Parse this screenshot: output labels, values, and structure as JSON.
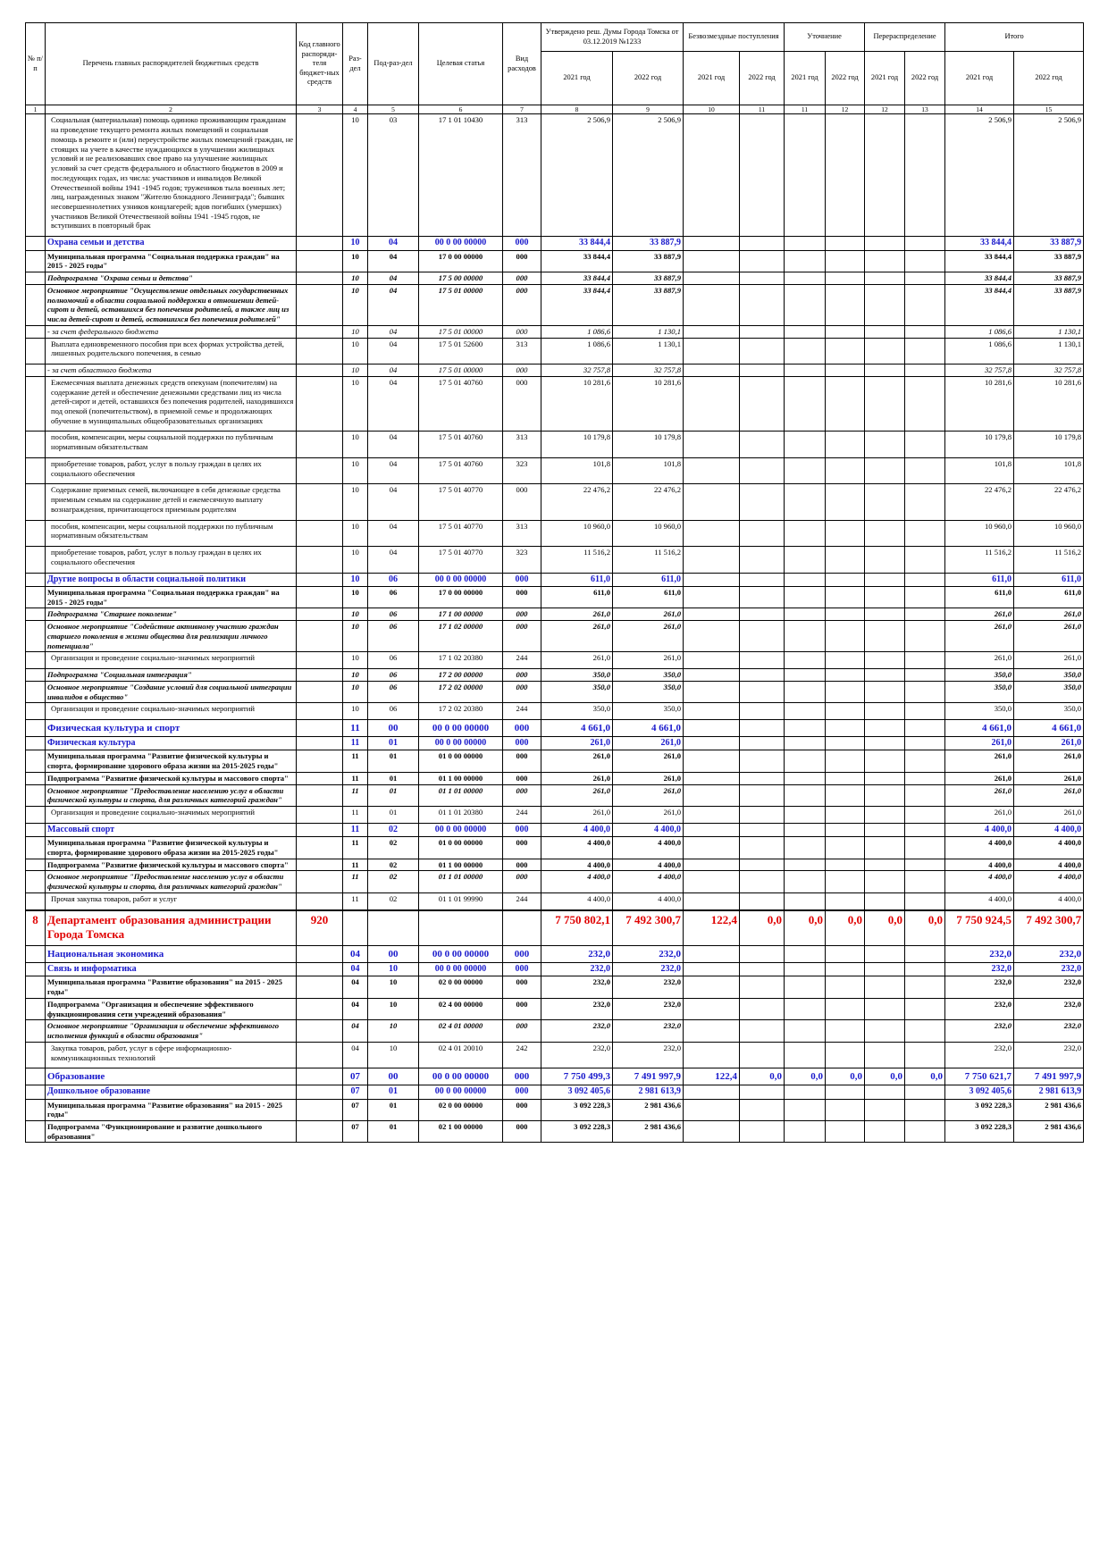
{
  "header": {
    "cols": [
      "№ п/п",
      "Перечень главных распорядителей бюджетных средств",
      "Код главного распоряди-теля бюджет-ных средств",
      "Раз-дел",
      "Под-раз-дел",
      "Целевая статья",
      "Вид расходов",
      "Утверждено реш. Думы Города Томска от 03.12.2019 №1233",
      "Безвозмездные поступления",
      "Уточнение",
      "Перераспределение",
      "Итого"
    ],
    "years": [
      "2021 год",
      "2022 год",
      "2021 год",
      "2022 год",
      "2021 год",
      "2022 год",
      "2021 год",
      "2022 год",
      "2021 год",
      "2022 год"
    ],
    "numbers": [
      "1",
      "2",
      "3",
      "4",
      "5",
      "6",
      "7",
      "8",
      "9",
      "10",
      "11",
      "11",
      "12",
      "12",
      "13",
      "14",
      "15"
    ]
  },
  "rows": [
    {
      "style": "plain",
      "cells": [
        null,
        "Социальная (материальная) помощь одиноко проживающим гражданам на проведение текущего ремонта жилых помещений и социальная помощь в ремонте и (или) переустройстве жилых помещений граждан, не стоящих на учете в качестве нуждающихся в улучшении жилищных условий и не реализовавших свое право на улучшение жилищных условий за счет средств федерального и областного бюджетов в 2009 и последующих годах, из числа: участников и инвалидов Великой Отечественной войны 1941 -1945 годов; тружеников тыла военных лет; лиц, награжденных знаком \"Жителю блокадного Ленинграда\"; бывших несовершеннолетних узников концлагерей; вдов погибших (умерших) участников Великой Отечественной войны 1941 -1945 годов, не вступивших в повторный брак",
        null,
        "10",
        "03",
        "17 1 01 10430",
        "313",
        "2 506,9",
        "2 506,9",
        null,
        null,
        null,
        null,
        null,
        null,
        "2 506,9",
        "2 506,9"
      ]
    },
    {
      "style": "section",
      "cells": [
        null,
        "Охрана семьи и детства",
        null,
        "10",
        "04",
        "00 0 00 00000",
        "000",
        "33 844,4",
        "33 887,9",
        null,
        null,
        null,
        null,
        null,
        null,
        "33 844,4",
        "33 887,9"
      ]
    },
    {
      "style": "bold",
      "cells": [
        null,
        "Муниципальная программа \"Социальная поддержка граждан\" на 2015 - 2025 годы\"",
        null,
        "10",
        "04",
        "17 0 00 00000",
        "000",
        "33 844,4",
        "33 887,9",
        null,
        null,
        null,
        null,
        null,
        null,
        "33 844,4",
        "33 887,9"
      ]
    },
    {
      "style": "bold-italic",
      "cells": [
        null,
        "Подпрограмма \"Охрана семьи и детства\"",
        null,
        "10",
        "04",
        "17 5 00 00000",
        "000",
        "33 844,4",
        "33 887,9",
        null,
        null,
        null,
        null,
        null,
        null,
        "33 844,4",
        "33 887,9"
      ]
    },
    {
      "style": "bold-italic",
      "cells": [
        null,
        "Основное мероприятие \"Осуществление отдельных государственных полномочий в области социальной поддержки в отношении детей-сирот и детей, оставшихся без попечения родителей, а также лиц из числа детей-сирот и детей, оставшихся без попечения родителей\"",
        null,
        "10",
        "04",
        "17 5 01 00000",
        "000",
        "33 844,4",
        "33 887,9",
        null,
        null,
        null,
        null,
        null,
        null,
        "33 844,4",
        "33 887,9"
      ]
    },
    {
      "style": "italic",
      "cells": [
        null,
        "- за счет федерального бюджета",
        null,
        "10",
        "04",
        "17 5 01 00000",
        "000",
        "1 086,6",
        "1 130,1",
        null,
        null,
        null,
        null,
        null,
        null,
        "1 086,6",
        "1 130,1"
      ]
    },
    {
      "style": "plain",
      "cells": [
        null,
        "Выплата единовременного пособия при всех формах устройства детей, лишенных родительского попечения, в семью",
        null,
        "10",
        "04",
        "17 5 01 52600",
        "313",
        "1 086,6",
        "1 130,1",
        null,
        null,
        null,
        null,
        null,
        null,
        "1 086,6",
        "1 130,1"
      ]
    },
    {
      "style": "italic",
      "cells": [
        null,
        "- за счет областного бюджета",
        null,
        "10",
        "04",
        "17 5 01 00000",
        "000",
        "32 757,8",
        "32 757,8",
        null,
        null,
        null,
        null,
        null,
        null,
        "32 757,8",
        "32 757,8"
      ]
    },
    {
      "style": "plain",
      "cells": [
        null,
        "Ежемесячная выплата денежных средств опекунам (попечителям) на содержание детей и обеспечение денежными средствами лиц из числа детей-сирот и детей, оставшихся без попечения родителей, находившихся под опекой (попечительством), в приемной семье и продолжающих обучение в муниципальных общеобразовательных организациях",
        null,
        "10",
        "04",
        "17 5 01 40760",
        "000",
        "10 281,6",
        "10 281,6",
        null,
        null,
        null,
        null,
        null,
        null,
        "10 281,6",
        "10 281,6"
      ]
    },
    {
      "style": "plain",
      "cells": [
        null,
        "пособия, компенсации, меры социальной поддержки по публичным нормативным обязательствам",
        null,
        "10",
        "04",
        "17 5 01 40760",
        "313",
        "10 179,8",
        "10 179,8",
        null,
        null,
        null,
        null,
        null,
        null,
        "10 179,8",
        "10 179,8"
      ]
    },
    {
      "style": "plain",
      "cells": [
        null,
        "приобретение товаров, работ, услуг в пользу граждан в целях их социального обеспечения",
        null,
        "10",
        "04",
        "17 5 01 40760",
        "323",
        "101,8",
        "101,8",
        null,
        null,
        null,
        null,
        null,
        null,
        "101,8",
        "101,8"
      ]
    },
    {
      "style": "plain",
      "cells": [
        null,
        "Содержание приемных семей, включающее в себя денежные средства приемным семьям на содержание детей и ежемесячную выплату вознаграждения, причитающегося приемным родителям",
        null,
        "10",
        "04",
        "17 5 01 40770",
        "000",
        "22 476,2",
        "22 476,2",
        null,
        null,
        null,
        null,
        null,
        null,
        "22 476,2",
        "22 476,2"
      ]
    },
    {
      "style": "plain",
      "cells": [
        null,
        "пособия, компенсации, меры социальной поддержки по публичным нормативным обязательствам",
        null,
        "10",
        "04",
        "17 5 01 40770",
        "313",
        "10 960,0",
        "10 960,0",
        null,
        null,
        null,
        null,
        null,
        null,
        "10 960,0",
        "10 960,0"
      ]
    },
    {
      "style": "plain",
      "cells": [
        null,
        "приобретение товаров, работ, услуг в пользу граждан в целях их социального обеспечения",
        null,
        "10",
        "04",
        "17 5 01 40770",
        "323",
        "11 516,2",
        "11 516,2",
        null,
        null,
        null,
        null,
        null,
        null,
        "11 516,2",
        "11 516,2"
      ]
    },
    {
      "style": "section",
      "cells": [
        null,
        "Другие вопросы в области социальной политики",
        null,
        "10",
        "06",
        "00 0 00 00000",
        "000",
        "611,0",
        "611,0",
        null,
        null,
        null,
        null,
        null,
        null,
        "611,0",
        "611,0"
      ]
    },
    {
      "style": "bold",
      "cells": [
        null,
        "Муниципальная программа \"Социальная поддержка граждан\" на 2015 - 2025 годы\"",
        null,
        "10",
        "06",
        "17 0 00 00000",
        "000",
        "611,0",
        "611,0",
        null,
        null,
        null,
        null,
        null,
        null,
        "611,0",
        "611,0"
      ]
    },
    {
      "style": "bold-italic",
      "cells": [
        null,
        "Подпрограмма \"Старшее поколение\"",
        null,
        "10",
        "06",
        "17 1 00 00000",
        "000",
        "261,0",
        "261,0",
        null,
        null,
        null,
        null,
        null,
        null,
        "261,0",
        "261,0"
      ]
    },
    {
      "style": "bold-italic",
      "cells": [
        null,
        "Основное мероприятие \"Содействие активному участию граждан старшего поколения в жизни общества для реализации личного потенциала\"",
        null,
        "10",
        "06",
        "17 1 02 00000",
        "000",
        "261,0",
        "261,0",
        null,
        null,
        null,
        null,
        null,
        null,
        "261,0",
        "261,0"
      ]
    },
    {
      "style": "plain",
      "cells": [
        null,
        "Организация и проведение социально-значимых мероприятий",
        null,
        "10",
        "06",
        "17 1 02 20380",
        "244",
        "261,0",
        "261,0",
        null,
        null,
        null,
        null,
        null,
        null,
        "261,0",
        "261,0"
      ]
    },
    {
      "style": "bold-italic",
      "cells": [
        null,
        "Подпрограмма \"Социальная интеграция\"",
        null,
        "10",
        "06",
        "17 2 00 00000",
        "000",
        "350,0",
        "350,0",
        null,
        null,
        null,
        null,
        null,
        null,
        "350,0",
        "350,0"
      ]
    },
    {
      "style": "bold-italic",
      "cells": [
        null,
        "Основное мероприятие \"Создание условий для социальной интеграции инвалидов в общество\"",
        null,
        "10",
        "06",
        "17 2 02 00000",
        "000",
        "350,0",
        "350,0",
        null,
        null,
        null,
        null,
        null,
        null,
        "350,0",
        "350,0"
      ]
    },
    {
      "style": "plain",
      "cells": [
        null,
        "Организация и проведение социально-значимых мероприятий",
        null,
        "10",
        "06",
        "17 2 02 20380",
        "244",
        "350,0",
        "350,0",
        null,
        null,
        null,
        null,
        null,
        null,
        "350,0",
        "350,0"
      ]
    },
    {
      "style": "section-big",
      "cells": [
        null,
        "Физическая культура и спорт",
        null,
        "11",
        "00",
        "00 0 00 00000",
        "000",
        "4 661,0",
        "4 661,0",
        null,
        null,
        null,
        null,
        null,
        null,
        "4 661,0",
        "4 661,0"
      ]
    },
    {
      "style": "section",
      "cells": [
        null,
        "Физическая культура",
        null,
        "11",
        "01",
        "00 0 00 00000",
        "000",
        "261,0",
        "261,0",
        null,
        null,
        null,
        null,
        null,
        null,
        "261,0",
        "261,0"
      ]
    },
    {
      "style": "bold",
      "cells": [
        null,
        "Муниципальная программа \"Развитие физической культуры и спорта, формирование здорового образа жизни на 2015-2025 годы\"",
        null,
        "11",
        "01",
        "01 0 00 00000",
        "000",
        "261,0",
        "261,0",
        null,
        null,
        null,
        null,
        null,
        null,
        "261,0",
        "261,0"
      ]
    },
    {
      "style": "bold",
      "cells": [
        null,
        "Подпрограмма \"Развитие физической культуры и массового спорта\"",
        null,
        "11",
        "01",
        "01 1 00 00000",
        "000",
        "261,0",
        "261,0",
        null,
        null,
        null,
        null,
        null,
        null,
        "261,0",
        "261,0"
      ]
    },
    {
      "style": "bold-italic",
      "cells": [
        null,
        "Основное мероприятие \"Предоставление населению услуг в области физической культуры и спорта, для различных категорий граждан\"",
        null,
        "11",
        "01",
        "01 1 01 00000",
        "000",
        "261,0",
        "261,0",
        null,
        null,
        null,
        null,
        null,
        null,
        "261,0",
        "261,0"
      ]
    },
    {
      "style": "plain",
      "cells": [
        null,
        "Организация и проведение социально-значимых мероприятий",
        null,
        "11",
        "01",
        "01 1 01 20380",
        "244",
        "261,0",
        "261,0",
        null,
        null,
        null,
        null,
        null,
        null,
        "261,0",
        "261,0"
      ]
    },
    {
      "style": "section",
      "cells": [
        null,
        "Массовый спорт",
        null,
        "11",
        "02",
        "00 0 00 00000",
        "000",
        "4 400,0",
        "4 400,0",
        null,
        null,
        null,
        null,
        null,
        null,
        "4 400,0",
        "4 400,0"
      ]
    },
    {
      "style": "bold",
      "cells": [
        null,
        "Муниципальная программа \"Развитие физической культуры и спорта, формирование здорового образа жизни на 2015-2025 годы\"",
        null,
        "11",
        "02",
        "01 0 00 00000",
        "000",
        "4 400,0",
        "4 400,0",
        null,
        null,
        null,
        null,
        null,
        null,
        "4 400,0",
        "4 400,0"
      ]
    },
    {
      "style": "bold",
      "cells": [
        null,
        "Подпрограмма \"Развитие физической культуры и массового спорта\"",
        null,
        "11",
        "02",
        "01 1 00 00000",
        "000",
        "4 400,0",
        "4 400,0",
        null,
        null,
        null,
        null,
        null,
        null,
        "4 400,0",
        "4 400,0"
      ]
    },
    {
      "style": "bold-italic",
      "cells": [
        null,
        "Основное мероприятие \"Предоставление населению услуг в области физической культуры и спорта, для различных категорий граждан\"",
        null,
        "11",
        "02",
        "01 1 01 00000",
        "000",
        "4 400,0",
        "4 400,0",
        null,
        null,
        null,
        null,
        null,
        null,
        "4 400,0",
        "4 400,0"
      ]
    },
    {
      "style": "plain",
      "cells": [
        null,
        "Прочая закупка товаров, работ и услуг",
        null,
        "11",
        "02",
        "01 1 01 99990",
        "244",
        "4 400,0",
        "4 400,0",
        null,
        null,
        null,
        null,
        null,
        null,
        "4 400,0",
        "4 400,0"
      ]
    },
    {
      "style": "dept",
      "cells": [
        "8",
        "Департамент образования администрации Города Томска",
        "920",
        null,
        null,
        null,
        null,
        "7 750 802,1",
        "7 492 300,7",
        "122,4",
        "0,0",
        "0,0",
        "0,0",
        "0,0",
        "0,0",
        "7 750 924,5",
        "7 492 300,7"
      ]
    },
    {
      "style": "section-big",
      "cells": [
        null,
        "Национальная экономика",
        null,
        "04",
        "00",
        "00 0 00 00000",
        "000",
        "232,0",
        "232,0",
        null,
        null,
        null,
        null,
        null,
        null,
        "232,0",
        "232,0"
      ]
    },
    {
      "style": "section",
      "cells": [
        null,
        "Связь и информатика",
        null,
        "04",
        "10",
        "00 0 00 00000",
        "000",
        "232,0",
        "232,0",
        null,
        null,
        null,
        null,
        null,
        null,
        "232,0",
        "232,0"
      ]
    },
    {
      "style": "bold",
      "cells": [
        null,
        "Муниципальная программа \"Развитие образования\" на 2015 - 2025 годы\"",
        null,
        "04",
        "10",
        "02 0 00 00000",
        "000",
        "232,0",
        "232,0",
        null,
        null,
        null,
        null,
        null,
        null,
        "232,0",
        "232,0"
      ]
    },
    {
      "style": "bold",
      "cells": [
        null,
        "Подпрограмма \"Организация и обеспечение эффективного функционирования сети учреждений образования\"",
        null,
        "04",
        "10",
        "02 4 00 00000",
        "000",
        "232,0",
        "232,0",
        null,
        null,
        null,
        null,
        null,
        null,
        "232,0",
        "232,0"
      ]
    },
    {
      "style": "bold-italic",
      "cells": [
        null,
        "Основное мероприятие \"Организация и обеспечение эффективного исполнения функций в области образования\"",
        null,
        "04",
        "10",
        "02 4 01 00000",
        "000",
        "232,0",
        "232,0",
        null,
        null,
        null,
        null,
        null,
        null,
        "232,0",
        "232,0"
      ]
    },
    {
      "style": "plain",
      "cells": [
        null,
        "Закупка товаров, работ, услуг в сфере информационно-коммуникационных технологий",
        null,
        "04",
        "10",
        "02 4 01 20010",
        "242",
        "232,0",
        "232,0",
        null,
        null,
        null,
        null,
        null,
        null,
        "232,0",
        "232,0"
      ]
    },
    {
      "style": "section-big",
      "cells": [
        null,
        "Образование",
        null,
        "07",
        "00",
        "00 0 00 00000",
        "000",
        "7 750 499,3",
        "7 491 997,9",
        "122,4",
        "0,0",
        "0,0",
        "0,0",
        "0,0",
        "0,0",
        "7 750 621,7",
        "7 491 997,9"
      ]
    },
    {
      "style": "section",
      "cells": [
        null,
        "Дошкольное образование",
        null,
        "07",
        "01",
        "00 0 00 00000",
        "000",
        "3 092 405,6",
        "2 981 613,9",
        null,
        null,
        null,
        null,
        null,
        null,
        "3 092 405,6",
        "2 981 613,9"
      ]
    },
    {
      "style": "bold",
      "cells": [
        null,
        "Муниципальная программа \"Развитие образования\" на 2015 - 2025 годы\"",
        null,
        "07",
        "01",
        "02 0 00 00000",
        "000",
        "3 092 228,3",
        "2 981 436,6",
        null,
        null,
        null,
        null,
        null,
        null,
        "3 092 228,3",
        "2 981 436,6"
      ]
    },
    {
      "style": "bold",
      "cells": [
        null,
        "Подпрограмма \"Функционирование и развитие дошкольного образования\"",
        null,
        "07",
        "01",
        "02 1 00 00000",
        "000",
        "3 092 228,3",
        "2 981 436,6",
        null,
        null,
        null,
        null,
        null,
        null,
        "3 092 228,3",
        "2 981 436,6"
      ]
    }
  ]
}
